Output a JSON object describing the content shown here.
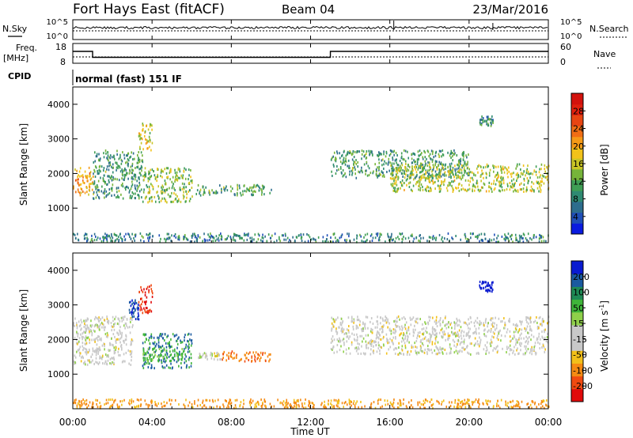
{
  "header": {
    "station": "Fort Hays East (fitACF)",
    "beam": "Beam 04",
    "date": "23/Mar/2016"
  },
  "aux_labels": {
    "nsky": "N.Sky",
    "nsearch": "N.Search",
    "freq": "Freq.",
    "freq_unit": "[MHz]",
    "nave": "Nave",
    "cpid": "CPID",
    "mode": "normal (fast) 151 IF"
  },
  "aux_ticks": {
    "noise_top": "10^5",
    "noise_bottom": "10^0",
    "freq_top": "18",
    "freq_bottom": "8",
    "nave_top": "60",
    "nave_bottom": "0"
  },
  "colorbars": {
    "power_title": "Power [dB]",
    "velocity_title": "Velocity [m s",
    "velocity_exp": "-1",
    "velocity_close": "]",
    "power_colors": [
      "#0a1be0",
      "#1f4fb8",
      "#2d6d8d",
      "#2f8a72",
      "#3f9e55",
      "#76b43a",
      "#c9c525",
      "#f2c21a",
      "#f59a17",
      "#f06e14",
      "#e84512",
      "#e0200e",
      "#d3120d"
    ],
    "velocity_colors": [
      "#e00a0a",
      "#f04a10",
      "#f58a12",
      "#f2c01a",
      "#c8c8c8",
      "#c8c8c8",
      "#8fd04a",
      "#3fb53a",
      "#1f8a55",
      "#1a5aa0",
      "#0a1bd0"
    ]
  },
  "chart_data": [
    {
      "type": "heatmap",
      "name": "power",
      "ylabel": "Slant Range [km]",
      "ylim": [
        0,
        4500
      ],
      "yticks": [
        "1000",
        "2000",
        "3000",
        "4000"
      ],
      "colorbar": {
        "label": "Power [dB]",
        "ticks": [
          "4",
          "8",
          "12",
          "16",
          "20",
          "24",
          "28"
        ],
        "range": [
          0,
          32
        ]
      },
      "echo_regions": [
        {
          "t0": 0.0,
          "t1": 1.0,
          "r0": 1400,
          "r1": 2200,
          "level": 20
        },
        {
          "t0": 1.0,
          "t1": 3.5,
          "r0": 1300,
          "r1": 2700,
          "level": 10
        },
        {
          "t0": 3.3,
          "t1": 4.0,
          "r0": 2700,
          "r1": 3500,
          "level": 17
        },
        {
          "t0": 3.5,
          "t1": 6.0,
          "r0": 1200,
          "r1": 2200,
          "level": 14
        },
        {
          "t0": 6.2,
          "t1": 10.0,
          "r0": 1400,
          "r1": 1700,
          "level": 11
        },
        {
          "t0": 13.0,
          "t1": 20.0,
          "r0": 1900,
          "r1": 2700,
          "level": 10
        },
        {
          "t0": 16.0,
          "t1": 24.0,
          "r0": 1500,
          "r1": 2300,
          "level": 15
        },
        {
          "t0": 20.5,
          "t1": 21.2,
          "r0": 3400,
          "r1": 3700,
          "level": 9
        },
        {
          "t0": 0.0,
          "t1": 24.0,
          "r0": 50,
          "r1": 300,
          "level": 8
        }
      ]
    },
    {
      "type": "heatmap",
      "name": "velocity",
      "ylabel": "Slant Range [km]",
      "ylim": [
        0,
        4500
      ],
      "yticks": [
        "1000",
        "2000",
        "3000",
        "4000"
      ],
      "colorbar": {
        "label": "Velocity [m s-1]",
        "ticks": [
          "200",
          "100",
          "50",
          "15",
          "-15",
          "-50",
          "-100",
          "-200"
        ]
      },
      "echo_regions": [
        {
          "t0": 0.0,
          "t1": 3.0,
          "r0": 1300,
          "r1": 2700,
          "level": 0
        },
        {
          "t0": 3.3,
          "t1": 4.0,
          "r0": 2800,
          "r1": 3600,
          "level": -150
        },
        {
          "t0": 2.8,
          "t1": 3.3,
          "r0": 2600,
          "r1": 3200,
          "level": 150
        },
        {
          "t0": 3.5,
          "t1": 6.0,
          "r0": 1200,
          "r1": 2200,
          "level": 80
        },
        {
          "t0": 3.5,
          "t1": 5.5,
          "r0": 1400,
          "r1": 1800,
          "level": 40
        },
        {
          "t0": 6.3,
          "t1": 7.5,
          "r0": 1450,
          "r1": 1650,
          "level": 0
        },
        {
          "t0": 7.5,
          "t1": 10.0,
          "r0": 1400,
          "r1": 1700,
          "level": -70
        },
        {
          "t0": 13.0,
          "t1": 24.0,
          "r0": 1600,
          "r1": 2700,
          "level": 0
        },
        {
          "t0": 20.5,
          "t1": 21.2,
          "r0": 3400,
          "r1": 3700,
          "level": 200
        },
        {
          "t0": 0.0,
          "t1": 24.0,
          "r0": 50,
          "r1": 300,
          "level": -40
        }
      ]
    }
  ],
  "time_axis": {
    "label": "Time UT",
    "ticks": [
      "00:00",
      "04:00",
      "08:00",
      "12:00",
      "16:00",
      "20:00",
      "00:00"
    ]
  },
  "frequency_trace": [
    {
      "t": 0.0,
      "f": 14
    },
    {
      "t": 1.0,
      "f": 11
    },
    {
      "t": 13.0,
      "f": 14
    },
    {
      "t": 24.0,
      "f": 14
    }
  ]
}
